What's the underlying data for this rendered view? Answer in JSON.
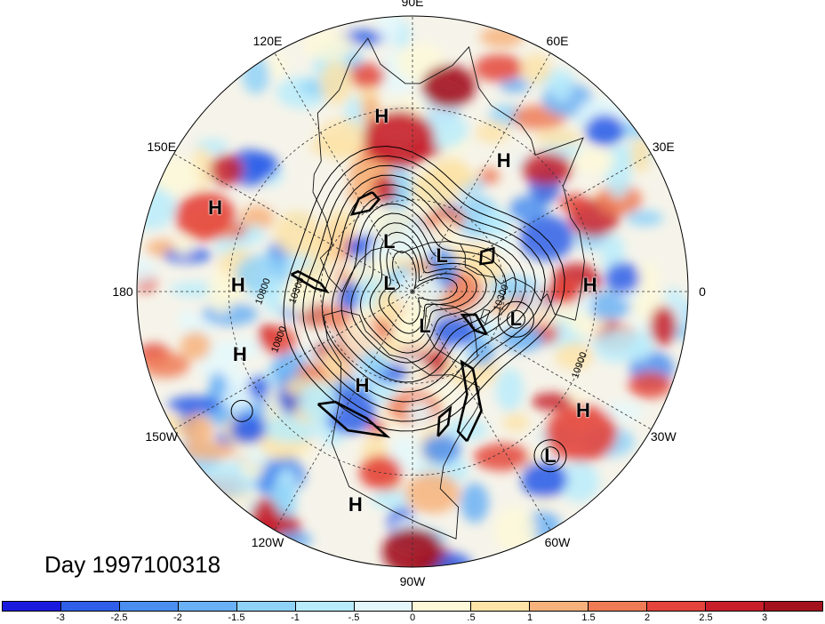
{
  "map": {
    "title": "Day 1997100318",
    "longitude_labels": [
      {
        "text": "90E",
        "deg": 90
      },
      {
        "text": "60E",
        "deg": 60
      },
      {
        "text": "30E",
        "deg": 30
      },
      {
        "text": "0",
        "deg": 0
      },
      {
        "text": "30W",
        "deg": -30
      },
      {
        "text": "60W",
        "deg": -60
      },
      {
        "text": "90W",
        "deg": -90
      },
      {
        "text": "120W",
        "deg": -120
      },
      {
        "text": "150W",
        "deg": -150
      },
      {
        "text": "180",
        "deg": 180
      },
      {
        "text": "150E",
        "deg": 150
      },
      {
        "text": "120E",
        "deg": 120
      }
    ],
    "pressure_centers": [
      {
        "type": "H",
        "lon": 100,
        "lat": 32
      },
      {
        "type": "H",
        "lon": 55,
        "lat": 38
      },
      {
        "type": "H",
        "lon": 2,
        "lat": 32
      },
      {
        "type": "H",
        "lon": 157,
        "lat": 20
      },
      {
        "type": "H",
        "lon": 178,
        "lat": 33
      },
      {
        "type": "H",
        "lon": -160,
        "lat": 30
      },
      {
        "type": "H",
        "lon": -118,
        "lat": 55
      },
      {
        "type": "H",
        "lon": -35,
        "lat": 22
      },
      {
        "type": "H",
        "lon": -105,
        "lat": 18
      },
      {
        "type": "L",
        "lon": 115,
        "lat": 72
      },
      {
        "type": "L",
        "lon": 160,
        "lat": 82
      },
      {
        "type": "L",
        "lon": 50,
        "lat": 75
      },
      {
        "type": "L",
        "lon": -70,
        "lat": 78
      },
      {
        "type": "L",
        "lon": -15,
        "lat": 55
      },
      {
        "type": "L",
        "lon": -50,
        "lat": 20
      }
    ],
    "contour_labels": [
      "10800",
      "10300",
      "10800",
      "10900",
      "10300"
    ],
    "colorbar": {
      "ticks": [
        "-3",
        "-2.5",
        "-2",
        "-1.5",
        "-1",
        "-.5",
        "0",
        ".5",
        "1",
        "1.5",
        "2",
        "2.5",
        "3"
      ],
      "colors": [
        "#1a1adf",
        "#2f5fe8",
        "#4a8ef0",
        "#6ab0f5",
        "#8fd2f8",
        "#b8ecfb",
        "#e4f8fc",
        "#fdf8d8",
        "#fde3a8",
        "#f7b27b",
        "#ef7b56",
        "#e4443b",
        "#c71e2a",
        "#a3101e"
      ]
    },
    "colors": {
      "negative": "#2f5fe8",
      "positive": "#e4443b",
      "coast": "#111111",
      "contour": "#000000"
    }
  }
}
